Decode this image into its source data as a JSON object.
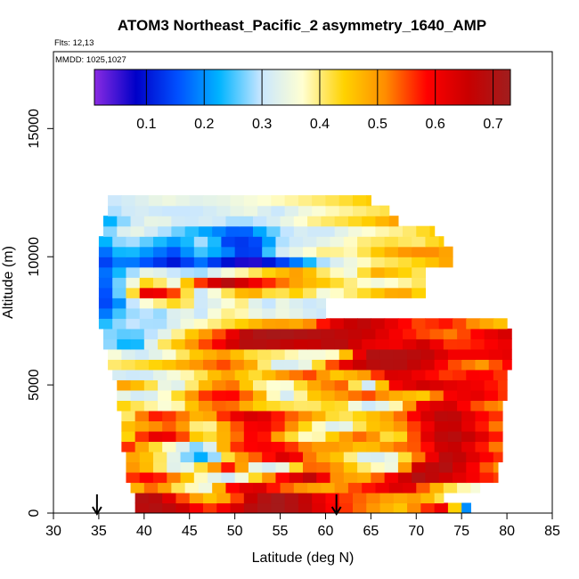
{
  "chart_data": {
    "type": "heatmap",
    "title": "ATOM3 Northeast_Pacific_2 asymmetry_1640_AMP",
    "flights_label": "Flts: 12,13",
    "dates_label": "MMDD: 1025,1027",
    "xlabel": "Latitude (deg N)",
    "ylabel": "Altitude (m)",
    "xlim": [
      30,
      85
    ],
    "ylim": [
      0,
      18000
    ],
    "x_ticks": [
      "30",
      "35",
      "40",
      "45",
      "50",
      "55",
      "60",
      "65",
      "70",
      "75",
      "80",
      "85"
    ],
    "y_ticks": [
      "0",
      "5000",
      "10000",
      "15000"
    ],
    "colorbar": {
      "range": [
        0.01,
        0.73
      ],
      "ticks": [
        "0.1",
        "0.2",
        "0.3",
        "0.4",
        "0.5",
        "0.6",
        "0.7"
      ],
      "tick_values": [
        0.1,
        0.2,
        0.3,
        0.4,
        0.5,
        0.6,
        0.7
      ],
      "colors": [
        "#8a2be2",
        "#0000c8",
        "#0050ff",
        "#00b4ff",
        "#c8e6ff",
        "#ffffd2",
        "#ffd200",
        "#ff8c00",
        "#ff0000",
        "#c80000",
        "#a01e1e"
      ]
    },
    "arrows_latitude": [
      34.8,
      61.2
    ],
    "bands": [
      {
        "alt_min": 0,
        "alt_max": 400,
        "lat_min": 39.0,
        "lat_max": 76.0,
        "values": [
          0.68,
          0.7,
          0.65,
          0.55,
          0.62,
          0.7,
          0.72,
          0.68,
          0.6,
          0.55,
          0.5,
          0.45,
          0.55,
          0.62,
          0.1
        ]
      },
      {
        "alt_min": 400,
        "alt_max": 800,
        "lat_min": 39.0,
        "lat_max": 73.0,
        "values": [
          0.7,
          0.68,
          0.55,
          0.45,
          0.5,
          0.68,
          0.72,
          0.68,
          0.6,
          0.55,
          0.52,
          0.48,
          0.5,
          0.4
        ]
      },
      {
        "alt_min": 800,
        "alt_max": 1200,
        "lat_min": 38.5,
        "lat_max": 77.0,
        "values": [
          0.45,
          0.55,
          0.4,
          0.35,
          0.58,
          0.65,
          0.55,
          0.5,
          0.48,
          0.55,
          0.6,
          0.65,
          0.5,
          0.4,
          0.35
        ]
      },
      {
        "alt_min": 1200,
        "alt_max": 1600,
        "lat_min": 38.0,
        "lat_max": 79.0,
        "values": [
          0.55,
          0.6,
          0.5,
          0.35,
          0.3,
          0.45,
          0.6,
          0.68,
          0.5,
          0.48,
          0.6,
          0.7,
          0.65,
          0.6,
          0.55
        ]
      },
      {
        "alt_min": 1600,
        "alt_max": 2000,
        "lat_min": 38.0,
        "lat_max": 79.0,
        "values": [
          0.52,
          0.45,
          0.3,
          0.45,
          0.6,
          0.3,
          0.35,
          0.55,
          0.5,
          0.4,
          0.35,
          0.65,
          0.7,
          0.6,
          0.5
        ]
      },
      {
        "alt_min": 2000,
        "alt_max": 2400,
        "lat_min": 38.0,
        "lat_max": 79.5,
        "values": [
          0.5,
          0.45,
          0.3,
          0.2,
          0.48,
          0.55,
          0.65,
          0.5,
          0.45,
          0.3,
          0.35,
          0.55,
          0.7,
          0.62,
          0.55
        ]
      },
      {
        "alt_min": 2400,
        "alt_max": 2800,
        "lat_min": 37.5,
        "lat_max": 79.5,
        "values": [
          0.6,
          0.45,
          0.35,
          0.25,
          0.55,
          0.6,
          0.58,
          0.5,
          0.5,
          0.45,
          0.52,
          0.55,
          0.68,
          0.6,
          0.5
        ]
      },
      {
        "alt_min": 2800,
        "alt_max": 3200,
        "lat_min": 37.5,
        "lat_max": 79.5,
        "values": [
          0.38,
          0.62,
          0.6,
          0.4,
          0.5,
          0.62,
          0.45,
          0.35,
          0.48,
          0.55,
          0.38,
          0.6,
          0.7,
          0.65,
          0.55
        ]
      },
      {
        "alt_min": 3200,
        "alt_max": 3600,
        "lat_min": 37.5,
        "lat_max": 79.5,
        "values": [
          0.45,
          0.5,
          0.55,
          0.35,
          0.52,
          0.62,
          0.55,
          0.4,
          0.3,
          0.45,
          0.48,
          0.58,
          0.68,
          0.6,
          0.5
        ]
      },
      {
        "alt_min": 3600,
        "alt_max": 4000,
        "lat_min": 37.5,
        "lat_max": 79.5,
        "values": [
          0.35,
          0.58,
          0.55,
          0.45,
          0.6,
          0.65,
          0.55,
          0.5,
          0.4,
          0.45,
          0.5,
          0.62,
          0.7,
          0.6,
          0.55
        ]
      },
      {
        "alt_min": 4000,
        "alt_max": 4400,
        "lat_min": 37.0,
        "lat_max": 79.5,
        "values": [
          0.45,
          0.4,
          0.35,
          0.5,
          0.55,
          0.45,
          0.42,
          0.4,
          0.45,
          0.3,
          0.35,
          0.6,
          0.65,
          0.55,
          0.5
        ]
      },
      {
        "alt_min": 4400,
        "alt_max": 4800,
        "lat_min": 37.0,
        "lat_max": 80.0,
        "values": [
          0.35,
          0.3,
          0.4,
          0.55,
          0.6,
          0.5,
          0.3,
          0.45,
          0.5,
          0.55,
          0.48,
          0.45,
          0.6,
          0.62,
          0.55
        ]
      },
      {
        "alt_min": 4800,
        "alt_max": 5200,
        "lat_min": 37.0,
        "lat_max": 80.0,
        "values": [
          0.5,
          0.45,
          0.3,
          0.45,
          0.55,
          0.4,
          0.35,
          0.48,
          0.55,
          0.3,
          0.6,
          0.65,
          0.62,
          0.6,
          0.55
        ]
      },
      {
        "alt_min": 5200,
        "alt_max": 5600,
        "lat_min": 36.5,
        "lat_max": 80.0,
        "values": [
          0.32,
          0.3,
          0.35,
          0.4,
          0.5,
          0.42,
          0.5,
          0.55,
          0.45,
          0.5,
          0.65,
          0.6,
          0.55,
          0.6,
          0.55
        ]
      },
      {
        "alt_min": 5600,
        "alt_max": 6000,
        "lat_min": 36.0,
        "lat_max": 80.5,
        "values": [
          0.4,
          0.42,
          0.45,
          0.5,
          0.55,
          0.48,
          0.3,
          0.35,
          0.6,
          0.68,
          0.7,
          0.65,
          0.55,
          0.5,
          0.6
        ]
      },
      {
        "alt_min": 6000,
        "alt_max": 6400,
        "lat_min": 36.0,
        "lat_max": 80.5,
        "values": [
          0.38,
          0.3,
          0.35,
          0.45,
          0.5,
          0.42,
          0.4,
          0.35,
          0.38,
          0.7,
          0.7,
          0.68,
          0.6,
          0.6,
          0.62
        ]
      },
      {
        "alt_min": 6400,
        "alt_max": 6800,
        "lat_min": 35.5,
        "lat_max": 80.5,
        "values": [
          0.3,
          0.2,
          0.4,
          0.5,
          0.6,
          0.7,
          0.68,
          0.65,
          0.7,
          0.62,
          0.6,
          0.65,
          0.55,
          0.58,
          0.62
        ]
      },
      {
        "alt_min": 6800,
        "alt_max": 7200,
        "lat_min": 35.5,
        "lat_max": 80.5,
        "values": [
          0.28,
          0.25,
          0.32,
          0.45,
          0.55,
          0.7,
          0.72,
          0.7,
          0.68,
          0.66,
          0.6,
          0.55,
          0.52,
          0.6,
          0.65
        ]
      },
      {
        "alt_min": 7200,
        "alt_max": 7600,
        "lat_min": 35.0,
        "lat_max": 80.0,
        "values": [
          0.22,
          0.3,
          0.28,
          0.35,
          0.4,
          0.45,
          0.5,
          0.48,
          0.62,
          0.68,
          0.62,
          0.55,
          0.58,
          0.5,
          0.45
        ]
      },
      {
        "alt_min": 7600,
        "alt_max": 8000,
        "lat_min": 35.0,
        "lat_max": 60.0,
        "values": [
          0.15,
          0.25,
          0.3,
          0.28,
          0.35,
          0.3,
          0.4,
          0.38,
          0.32,
          0.35,
          0.32,
          0.3
        ]
      },
      {
        "alt_min": 8000,
        "alt_max": 8400,
        "lat_min": 35.0,
        "lat_max": 60.0,
        "values": [
          0.12,
          0.2,
          0.35,
          0.4,
          0.45,
          0.3,
          0.35,
          0.4,
          0.28,
          0.35,
          0.3,
          0.32
        ]
      },
      {
        "alt_min": 8400,
        "alt_max": 8800,
        "lat_min": 35.0,
        "lat_max": 71.0,
        "values": [
          0.1,
          0.3,
          0.65,
          0.55,
          0.3,
          0.4,
          0.5,
          0.4,
          0.45,
          0.35,
          0.4,
          0.45,
          0.5,
          0.42
        ]
      },
      {
        "alt_min": 8800,
        "alt_max": 9200,
        "lat_min": 35.0,
        "lat_max": 71.0,
        "values": [
          0.12,
          0.3,
          0.45,
          0.35,
          0.55,
          0.7,
          0.62,
          0.55,
          0.48,
          0.45,
          0.4,
          0.35,
          0.38,
          0.42
        ]
      },
      {
        "alt_min": 9200,
        "alt_max": 9600,
        "lat_min": 35.0,
        "lat_max": 71.0,
        "values": [
          0.15,
          0.25,
          0.35,
          0.3,
          0.28,
          0.35,
          0.4,
          0.45,
          0.5,
          0.4,
          0.35,
          0.48,
          0.45,
          0.4
        ]
      },
      {
        "alt_min": 9600,
        "alt_max": 10000,
        "lat_min": 35.0,
        "lat_max": 74.0,
        "values": [
          0.12,
          0.2,
          0.15,
          0.1,
          0.18,
          0.1,
          0.05,
          0.12,
          0.2,
          0.3,
          0.35,
          0.4,
          0.42,
          0.45,
          0.5
        ]
      },
      {
        "alt_min": 10000,
        "alt_max": 10400,
        "lat_min": 35.0,
        "lat_max": 74.0,
        "values": [
          0.15,
          0.25,
          0.2,
          0.15,
          0.25,
          0.2,
          0.1,
          0.3,
          0.35,
          0.4,
          0.38,
          0.45,
          0.5,
          0.52,
          0.48
        ]
      },
      {
        "alt_min": 10400,
        "alt_max": 10800,
        "lat_min": 35.0,
        "lat_max": 73.0,
        "values": [
          0.2,
          0.3,
          0.25,
          0.2,
          0.3,
          0.12,
          0.15,
          0.3,
          0.32,
          0.35,
          0.4,
          0.42,
          0.4,
          0.45
        ]
      },
      {
        "alt_min": 10800,
        "alt_max": 11200,
        "lat_min": 35.5,
        "lat_max": 72.0,
        "values": [
          0.25,
          0.35,
          0.3,
          0.25,
          0.2,
          0.15,
          0.25,
          0.32,
          0.3,
          0.35,
          0.38,
          0.4,
          0.45
        ]
      },
      {
        "alt_min": 11200,
        "alt_max": 11600,
        "lat_min": 35.5,
        "lat_max": 68.0,
        "values": [
          0.2,
          0.3,
          0.35,
          0.3,
          0.32,
          0.28,
          0.3,
          0.35,
          0.4,
          0.42,
          0.45,
          0.5
        ]
      },
      {
        "alt_min": 11600,
        "alt_max": 12000,
        "lat_min": 36.0,
        "lat_max": 67.0,
        "values": [
          0.28,
          0.32,
          0.3,
          0.3,
          0.32,
          0.35,
          0.3,
          0.35,
          0.38,
          0.4,
          0.42
        ]
      },
      {
        "alt_min": 12000,
        "alt_max": 12400,
        "lat_min": 36.0,
        "lat_max": 65.0,
        "values": [
          0.3,
          0.32,
          0.35,
          0.33,
          0.34,
          0.36,
          0.38,
          0.4,
          0.42,
          0.45
        ]
      }
    ]
  }
}
